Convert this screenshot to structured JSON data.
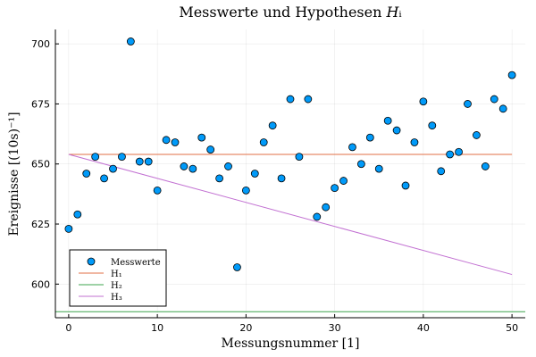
{
  "chart_data": {
    "type": "scatter",
    "title": "Messwerte und Hypothesen 𝐻ᵢ",
    "xlabel": "Messungsnummer [1]",
    "ylabel": "Ereignisse [(10s)⁻¹]",
    "xlim": [
      -1.5,
      51.5
    ],
    "ylim": [
      586,
      706
    ],
    "xticks": [
      0,
      10,
      20,
      30,
      40,
      50
    ],
    "yticks": [
      600,
      625,
      650,
      675,
      700
    ],
    "grid": true,
    "legend_position": "bottom-left",
    "series": [
      {
        "name": "Messwerte",
        "kind": "scatter",
        "color": "#009af9",
        "points": [
          [
            0,
            623
          ],
          [
            1,
            629
          ],
          [
            2,
            646
          ],
          [
            3,
            653
          ],
          [
            4,
            644
          ],
          [
            5,
            648
          ],
          [
            6,
            653
          ],
          [
            7,
            701
          ],
          [
            8,
            651
          ],
          [
            9,
            651
          ],
          [
            10,
            639
          ],
          [
            11,
            660
          ],
          [
            12,
            659
          ],
          [
            13,
            649
          ],
          [
            14,
            648
          ],
          [
            15,
            661
          ],
          [
            16,
            656
          ],
          [
            17,
            644
          ],
          [
            18,
            649
          ],
          [
            19,
            607
          ],
          [
            20,
            639
          ],
          [
            21,
            646
          ],
          [
            22,
            659
          ],
          [
            23,
            666
          ],
          [
            24,
            644
          ],
          [
            25,
            677
          ],
          [
            26,
            653
          ],
          [
            27,
            677
          ],
          [
            28,
            628
          ],
          [
            29,
            632
          ],
          [
            30,
            640
          ],
          [
            31,
            643
          ],
          [
            32,
            657
          ],
          [
            33,
            650
          ],
          [
            34,
            661
          ],
          [
            35,
            648
          ],
          [
            36,
            668
          ],
          [
            37,
            664
          ],
          [
            38,
            641
          ],
          [
            39,
            659
          ],
          [
            40,
            676
          ],
          [
            41,
            666
          ],
          [
            42,
            647
          ],
          [
            43,
            654
          ],
          [
            44,
            655
          ],
          [
            45,
            675
          ],
          [
            46,
            662
          ],
          [
            47,
            649
          ],
          [
            48,
            677
          ],
          [
            49,
            673
          ],
          [
            50,
            687
          ]
        ]
      },
      {
        "name": "H₁",
        "kind": "line",
        "color": "#e26f46",
        "points": [
          [
            0,
            654
          ],
          [
            50,
            654
          ]
        ]
      },
      {
        "name": "H₂",
        "kind": "line",
        "color": "#3da44d",
        "points": [
          [
            -1.5,
            588.5
          ],
          [
            51.5,
            588.5
          ]
        ]
      },
      {
        "name": "H₃",
        "kind": "line",
        "color": "#c271d2",
        "points": [
          [
            0,
            654
          ],
          [
            50,
            604
          ]
        ]
      }
    ]
  }
}
